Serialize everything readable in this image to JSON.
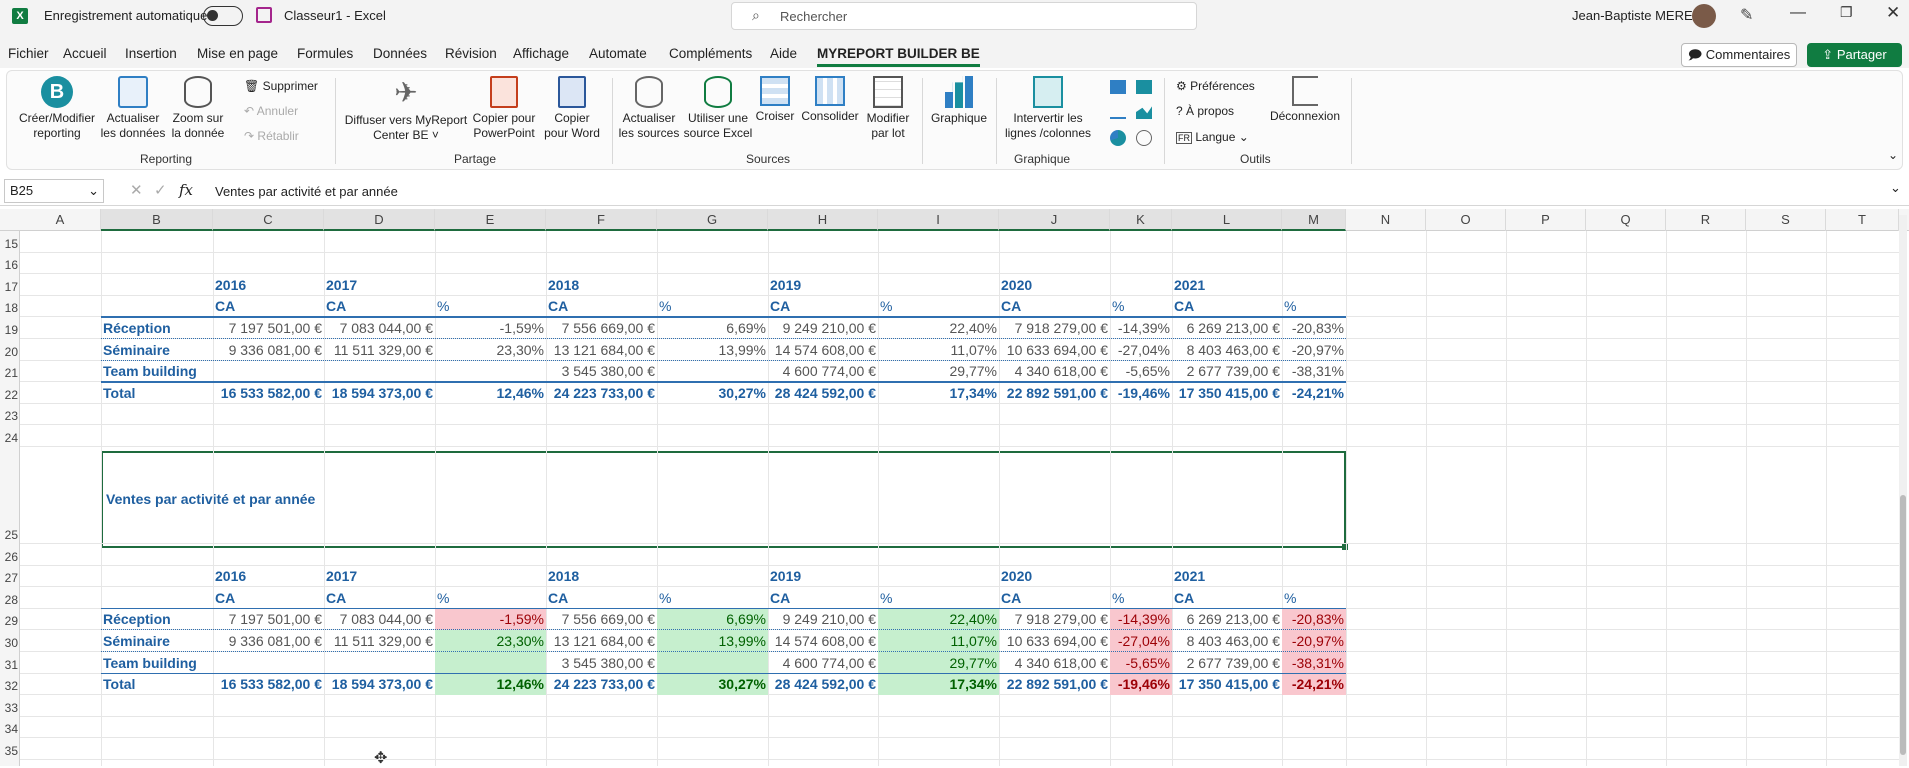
{
  "titlebar": {
    "autosave": "Enregistrement automatique",
    "filename": "Classeur1  -  Excel",
    "search": "Rechercher",
    "user": "Jean-Baptiste MEREL"
  },
  "tabs": [
    "Fichier",
    "Accueil",
    "Insertion",
    "Mise en page",
    "Formules",
    "Données",
    "Révision",
    "Affichage",
    "Automate",
    "Compléments",
    "Aide",
    "MYREPORT BUILDER BE"
  ],
  "comments": "Commentaires",
  "share": "Partager",
  "ribbon": {
    "reporting": [
      "Créer/Modifier",
      "reporting",
      "Actualiser",
      "les données",
      "Zoom sur",
      "la donnée",
      "Supprimer",
      "Annuler",
      "Rétablir"
    ],
    "partage": [
      "Diffuser vers MyReport",
      "Center BE ˅",
      "Copier pour",
      "PowerPoint",
      "Copier",
      "pour Word"
    ],
    "sources": [
      "Actualiser",
      "les sources",
      "Utiliser une",
      "source Excel",
      "Croiser",
      "Consolider",
      "Modifier",
      "par lot"
    ],
    "graphique": [
      "Graphique",
      "Intervertir les",
      "lignes /colonnes"
    ],
    "outils": [
      "Préférences",
      "À propos",
      "Langue",
      "Déconnexion"
    ],
    "groups": [
      "Reporting",
      "Partage",
      "Sources",
      "Graphique",
      "Outils"
    ]
  },
  "namebox": "B25",
  "formula": "Ventes par activité et par année",
  "cols": [
    "A",
    "B",
    "C",
    "D",
    "E",
    "F",
    "G",
    "H",
    "I",
    "J",
    "K",
    "L",
    "M",
    "N",
    "O",
    "P",
    "Q",
    "R",
    "S",
    "T"
  ],
  "rows": [
    "15",
    "16",
    "17",
    "18",
    "19",
    "20",
    "21",
    "22",
    "23",
    "24",
    "25",
    "26",
    "27",
    "28",
    "29",
    "30",
    "31",
    "32",
    "33",
    "34",
    "35"
  ],
  "table": {
    "years": [
      "2016",
      "2017",
      "2018",
      "2019",
      "2020",
      "2021"
    ],
    "ca": "CA",
    "pct": "%",
    "labels": [
      "Réception",
      "Séminaire",
      "Team building",
      "Total"
    ],
    "r1": [
      "7 197 501,00 €",
      "7 083 044,00 €",
      "-1,59%",
      "7 556 669,00 €",
      "6,69%",
      "9 249 210,00 €",
      "22,40%",
      "7 918 279,00 €",
      "-14,39%",
      "6 269 213,00 €",
      "-20,83%"
    ],
    "r2": [
      "9 336 081,00 €",
      "11 511 329,00 €",
      "23,30%",
      "13 121 684,00 €",
      "13,99%",
      "14 574 608,00 €",
      "11,07%",
      "10 633 694,00 €",
      "-27,04%",
      "8 403 463,00 €",
      "-20,97%"
    ],
    "r3": [
      "",
      "",
      "",
      "3 545 380,00 €",
      "",
      "4 600 774,00 €",
      "29,77%",
      "4 340 618,00 €",
      "-5,65%",
      "2 677 739,00 €",
      "-38,31%"
    ],
    "r4": [
      "16 533 582,00 €",
      "18 594 373,00 €",
      "12,46%",
      "24 223 733,00 €",
      "30,27%",
      "28 424 592,00 €",
      "17,34%",
      "22 892 591,00 €",
      "-19,46%",
      "17 350 415,00 €",
      "-24,21%"
    ]
  },
  "title": "Ventes par activité et par année"
}
